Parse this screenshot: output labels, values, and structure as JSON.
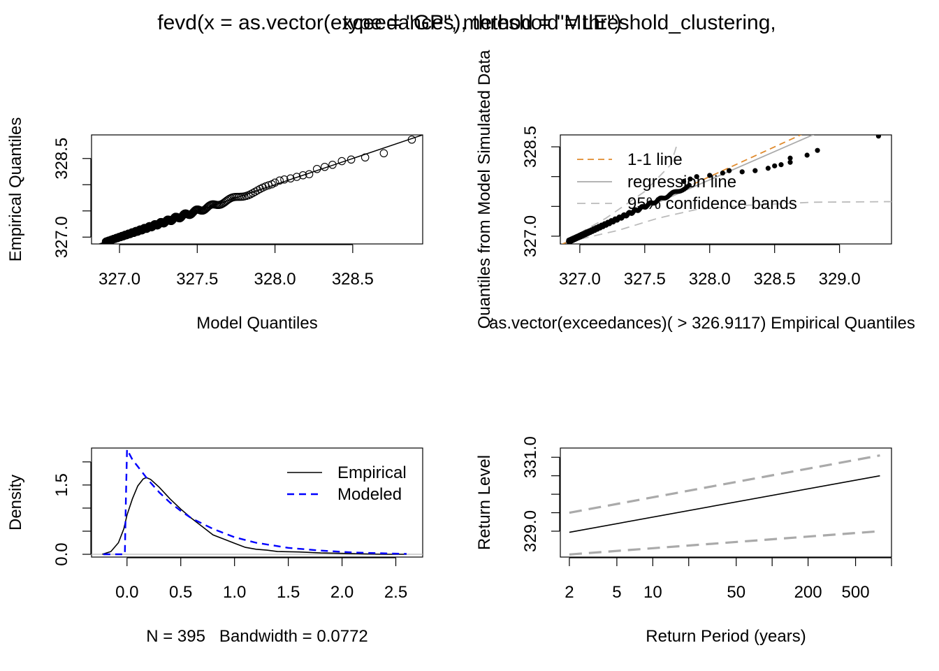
{
  "title_line1": "fevd(x = as.vector(exceedances), threshold = threshold_clustering,",
  "title_line2": "type = \"GP\", method = \"MLE\")",
  "chart_data": [
    {
      "type": "scatter",
      "panel": "qq-plot",
      "xlabel": "Model Quantiles",
      "ylabel": "Empirical Quantiles",
      "xlim": [
        326.82,
        328.95
      ],
      "ylim": [
        326.87,
        328.95
      ],
      "xticks": [
        327.0,
        327.5,
        328.0,
        328.5
      ],
      "xtick_labels": [
        "327.0",
        "327.5",
        "328.0",
        "328.5"
      ],
      "yticks": [
        327.0,
        327.5,
        328.0,
        328.5
      ],
      "ytick_labels": [
        "327.0",
        "",
        "",
        "328.5"
      ],
      "reference_line": {
        "intercept": 0,
        "slope": 1
      },
      "point_style": "open-circle",
      "n_points": 395,
      "upper_tail_points": {
        "x": [
          328.0,
          328.03,
          328.06,
          328.1,
          328.14,
          328.18,
          328.22,
          328.27,
          328.32,
          328.37,
          328.43,
          328.49,
          328.58,
          328.7,
          328.88
        ],
        "y": [
          328.04,
          328.08,
          328.1,
          328.12,
          328.15,
          328.18,
          328.2,
          328.3,
          328.34,
          328.38,
          328.45,
          328.48,
          328.52,
          328.6,
          328.86
        ]
      }
    },
    {
      "type": "scatter",
      "panel": "simulated-qq-plot",
      "xlabel": "as.vector(exceedances)( > 326.9117) Empirical Quantiles",
      "ylabel": "Quantiles from Model Simulated Data",
      "xlim": [
        326.85,
        329.4
      ],
      "ylim": [
        326.87,
        328.7
      ],
      "xticks": [
        327.0,
        327.5,
        328.0,
        328.5,
        329.0
      ],
      "xtick_labels": [
        "327.0",
        "327.5",
        "328.0",
        "328.5",
        "329.0"
      ],
      "yticks": [
        327.0,
        327.5,
        328.0,
        328.5
      ],
      "ytick_labels": [
        "327.0",
        "",
        "",
        "328.5"
      ],
      "legend": {
        "position": "top-left",
        "entries": [
          "1-1 line",
          "regression line",
          "95% confidence bands"
        ]
      },
      "colors": {
        "one_to_one": "#E08A2C",
        "regression": "#AAAAAA",
        "bands": "#BBBBBB",
        "points": "#000000"
      },
      "point_style": "filled-dot",
      "upper_tail_points": {
        "x": [
          327.8,
          327.85,
          327.9,
          328.0,
          328.1,
          328.15,
          328.25,
          328.35,
          328.45,
          328.5,
          328.55,
          328.62,
          328.62,
          328.75,
          328.83,
          329.3
        ],
        "y": [
          327.92,
          327.96,
          328.0,
          328.02,
          328.06,
          328.1,
          328.08,
          328.1,
          328.14,
          328.18,
          328.2,
          328.24,
          328.31,
          328.36,
          328.44,
          328.68
        ]
      }
    },
    {
      "type": "line",
      "panel": "density-plot",
      "xlabel": "N = 395   Bandwidth = 0.0772",
      "ylabel": "Density",
      "xlim": [
        -0.33,
        2.75
      ],
      "ylim": [
        -0.06,
        2.3
      ],
      "xticks": [
        0.0,
        0.5,
        1.0,
        1.5,
        2.0,
        2.5
      ],
      "xtick_labels": [
        "0.0",
        "0.5",
        "1.0",
        "1.5",
        "2.0",
        "2.5"
      ],
      "yticks": [
        0.0,
        0.5,
        1.0,
        1.5,
        2.0
      ],
      "ytick_labels": [
        "0.0",
        "",
        "",
        "1.5",
        ""
      ],
      "legend": {
        "position": "top-right",
        "entries": [
          "Empirical",
          "Modeled"
        ]
      },
      "colors": {
        "empirical": "#000000",
        "modeled": "#0000FF",
        "zero_line": "#BBBBBB"
      },
      "series": [
        {
          "name": "Empirical",
          "x": [
            -0.23,
            -0.15,
            -0.08,
            -0.03,
            0.0,
            0.05,
            0.1,
            0.15,
            0.18,
            0.22,
            0.3,
            0.4,
            0.5,
            0.6,
            0.7,
            0.8,
            0.9,
            1.0,
            1.1,
            1.2,
            1.3,
            1.4,
            1.6,
            1.8,
            2.0,
            2.2,
            2.4,
            2.6
          ],
          "y": [
            0.0,
            0.06,
            0.25,
            0.55,
            0.85,
            1.2,
            1.48,
            1.63,
            1.66,
            1.62,
            1.45,
            1.2,
            0.98,
            0.78,
            0.6,
            0.42,
            0.33,
            0.24,
            0.15,
            0.11,
            0.09,
            0.06,
            0.05,
            0.03,
            0.02,
            0.01,
            0.0,
            0.0
          ]
        },
        {
          "name": "Modeled",
          "x": [
            -0.22,
            -0.02,
            -0.01,
            0.0,
            0.05,
            0.1,
            0.2,
            0.3,
            0.4,
            0.5,
            0.6,
            0.8,
            1.0,
            1.2,
            1.5,
            1.8,
            2.1,
            2.4,
            2.6
          ],
          "y": [
            0.0,
            0.0,
            1.2,
            2.27,
            2.05,
            1.9,
            1.6,
            1.34,
            1.12,
            0.94,
            0.78,
            0.55,
            0.37,
            0.25,
            0.14,
            0.08,
            0.04,
            0.02,
            0.01
          ]
        }
      ]
    },
    {
      "type": "line",
      "panel": "return-level-plot",
      "xlabel": "Return Period (years)",
      "ylabel": "Return Level",
      "x_scale": "log",
      "xlim": [
        1.68,
        1000
      ],
      "ylim": [
        328.3,
        331.25
      ],
      "xticks": [
        2,
        5,
        10,
        20,
        50,
        100,
        200,
        500,
        1000
      ],
      "xtick_labels": [
        "2",
        "5",
        "10",
        "",
        "50",
        "",
        "200",
        "500",
        ""
      ],
      "yticks": [
        329.0,
        329.5,
        330.0,
        330.5,
        331.0
      ],
      "ytick_labels": [
        "329.0",
        "",
        "",
        "",
        "331.0"
      ],
      "colors": {
        "estimate": "#000000",
        "ci": "#AAAAAA"
      },
      "series": [
        {
          "name": "",
          "x": [
            2,
            800
          ],
          "y": [
            328.97,
            330.5
          ]
        },
        {
          "name": "",
          "x": [
            2,
            800
          ],
          "y": [
            329.5,
            331.05
          ]
        },
        {
          "name": "",
          "x": [
            2,
            800
          ],
          "y": [
            328.37,
            329.0
          ]
        }
      ]
    }
  ]
}
